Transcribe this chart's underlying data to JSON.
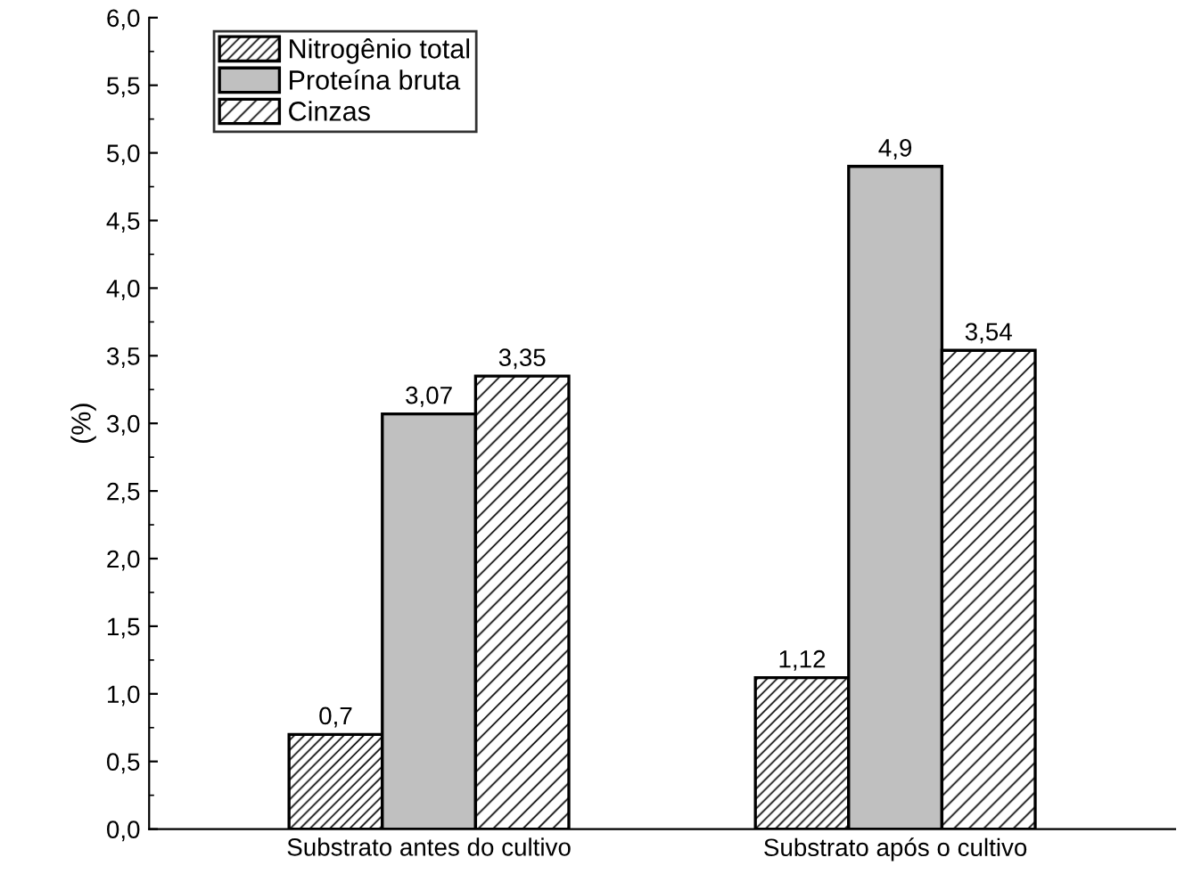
{
  "chart_data": {
    "type": "bar",
    "ylabel": "(%)",
    "categories": [
      "Substrato antes do cultivo",
      "Substrato após o cultivo"
    ],
    "series": [
      {
        "name": "Nitrogênio total",
        "color": "#000000",
        "values": [
          0.7,
          1.12
        ],
        "value_labels": [
          "0,7",
          "1,12"
        ]
      },
      {
        "name": "Proteína bruta",
        "color": "#c0c0c0",
        "values": [
          3.07,
          4.9
        ],
        "value_labels": [
          "3,07",
          "4,9"
        ]
      },
      {
        "name": "Cinzas",
        "color": "#000000",
        "values": [
          3.35,
          3.54
        ],
        "value_labels": [
          "3,35",
          "3,54"
        ]
      }
    ],
    "ylim": [
      0,
      6
    ],
    "yticks": [
      {
        "value": 0,
        "label": "0,0"
      },
      {
        "value": 0.5,
        "label": "0,5"
      },
      {
        "value": 1,
        "label": "1,0"
      },
      {
        "value": 1.5,
        "label": "1,5"
      },
      {
        "value": 2,
        "label": "2,0"
      },
      {
        "value": 2.5,
        "label": "2,5"
      },
      {
        "value": 3,
        "label": "3,0"
      },
      {
        "value": 3.5,
        "label": "3,5"
      },
      {
        "value": 4,
        "label": "4,0"
      },
      {
        "value": 4.5,
        "label": "4,5"
      },
      {
        "value": 5,
        "label": "5,0"
      },
      {
        "value": 5.5,
        "label": "5,5"
      },
      {
        "value": 6,
        "label": "6,0"
      }
    ],
    "legend": "top left",
    "grid": false
  }
}
